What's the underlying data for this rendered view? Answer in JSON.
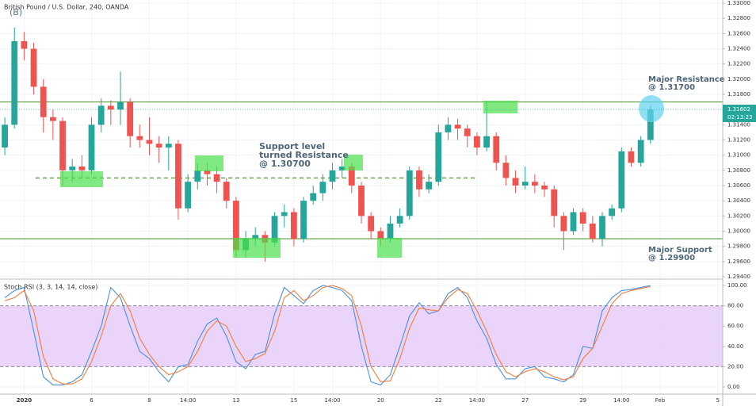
{
  "chart_data": [
    {
      "type": "candlestick",
      "title": "British Pound / U.S. Dollar, 240, OANDA",
      "annotation_b": "(B)",
      "annotations": [
        "Support level",
        "turned Resistance",
        "@ 1.30700",
        "Major Resistance",
        "@ 1.31700",
        "Major Support",
        "@ 1.29900"
      ],
      "categories": [
        null,
        null,
        "2020",
        null,
        null,
        null,
        null,
        null,
        null,
        "6",
        null,
        null,
        null,
        null,
        null,
        "8",
        null,
        null,
        null,
        "14:00",
        null,
        null,
        null,
        null,
        "13",
        null,
        null,
        null,
        null,
        null,
        "15",
        null,
        null,
        null,
        "14:00",
        null,
        null,
        null,
        null,
        "20",
        null,
        null,
        null,
        null,
        null,
        "22",
        null,
        null,
        null,
        "14:00",
        null,
        null,
        null,
        null,
        "27",
        null,
        null,
        null,
        null,
        null,
        "29",
        null,
        null,
        null,
        "14:00",
        null,
        null,
        null,
        "Feb",
        null,
        null,
        null,
        null,
        null,
        "5"
      ],
      "open": [
        1.311,
        1.314,
        1.325,
        1.324,
        1.319,
        1.315,
        1.3145,
        1.308,
        1.3085,
        1.308,
        1.314,
        1.3165,
        1.316,
        1.317,
        1.3125,
        1.312,
        1.3115,
        1.311,
        1.3115,
        1.303,
        1.3065,
        1.308,
        1.3075,
        1.3065,
        1.304,
        1.2975,
        1.299,
        1.2995,
        1.2985,
        1.302,
        1.3025,
        1.299,
        1.304,
        1.305,
        1.3065,
        1.308,
        1.3085,
        1.306,
        1.302,
        1.3,
        1.299,
        1.301,
        1.302,
        1.308,
        1.3055,
        1.3065,
        1.313,
        1.314,
        1.3135,
        1.3125,
        1.311,
        1.3125,
        1.309,
        1.307,
        1.306,
        1.3065,
        1.306,
        1.3055,
        1.302,
        1.3,
        1.3025,
        1.301,
        1.299,
        1.302,
        1.303,
        1.3105,
        1.309,
        1.312,
        null,
        null,
        null,
        null,
        null,
        null,
        null
      ],
      "high": [
        1.315,
        1.3268,
        1.3262,
        1.3248,
        1.32,
        1.316,
        1.315,
        1.3095,
        1.31,
        1.315,
        1.3175,
        1.3172,
        1.321,
        1.3175,
        1.314,
        1.315,
        1.3125,
        1.3125,
        1.312,
        1.3075,
        1.309,
        1.309,
        1.3085,
        1.307,
        1.3045,
        1.3,
        1.3005,
        1.3,
        1.3025,
        1.3035,
        1.303,
        1.3045,
        1.306,
        1.3075,
        1.309,
        1.3095,
        1.309,
        1.3065,
        1.3025,
        1.3005,
        1.302,
        1.303,
        1.3085,
        1.3085,
        1.3075,
        1.314,
        1.315,
        1.3148,
        1.314,
        1.313,
        1.317,
        1.313,
        1.31,
        1.308,
        1.3085,
        1.3075,
        1.3065,
        1.306,
        1.3025,
        1.303,
        1.303,
        1.302,
        1.3025,
        1.3035,
        1.311,
        1.311,
        1.3125,
        1.3165,
        null,
        null,
        null,
        null,
        null,
        null,
        null
      ],
      "low": [
        1.31,
        1.3135,
        1.3225,
        1.318,
        1.313,
        1.312,
        1.306,
        1.3065,
        1.307,
        1.3075,
        1.313,
        1.314,
        1.314,
        1.311,
        1.311,
        1.31,
        1.309,
        1.308,
        1.3015,
        1.3025,
        1.3055,
        1.306,
        1.305,
        1.303,
        1.2965,
        1.2965,
        1.298,
        1.296,
        1.298,
        1.3005,
        1.298,
        1.2985,
        1.3035,
        1.304,
        1.3055,
        1.307,
        1.305,
        1.301,
        1.299,
        1.298,
        1.2985,
        1.3005,
        1.3015,
        1.3045,
        1.305,
        1.306,
        1.312,
        1.312,
        1.311,
        1.31,
        1.3105,
        1.308,
        1.306,
        1.305,
        1.3055,
        1.305,
        1.3045,
        1.3005,
        1.2975,
        1.2995,
        1.3,
        1.2985,
        1.298,
        1.3015,
        1.3025,
        1.3085,
        1.3085,
        1.3115,
        null,
        null,
        null,
        null,
        null,
        null,
        null
      ],
      "close": [
        1.314,
        1.325,
        1.324,
        1.319,
        1.315,
        1.3145,
        1.308,
        1.3085,
        1.308,
        1.314,
        1.3165,
        1.316,
        1.317,
        1.3125,
        1.312,
        1.3115,
        1.311,
        1.3115,
        1.303,
        1.3065,
        1.308,
        1.3075,
        1.3065,
        1.304,
        1.2975,
        1.299,
        1.2995,
        1.2985,
        1.302,
        1.3025,
        1.299,
        1.304,
        1.305,
        1.3065,
        1.308,
        1.3085,
        1.306,
        1.302,
        1.3,
        1.299,
        1.301,
        1.302,
        1.308,
        1.3055,
        1.3065,
        1.313,
        1.314,
        1.3135,
        1.3125,
        1.311,
        1.3125,
        1.309,
        1.307,
        1.306,
        1.3065,
        1.306,
        1.3055,
        1.302,
        1.3,
        1.3025,
        1.301,
        1.299,
        1.302,
        1.303,
        1.3105,
        1.309,
        1.312,
        1.316,
        null,
        null,
        null,
        null,
        null,
        null,
        null
      ],
      "up_color": "#26a69a",
      "down_color": "#ef5350",
      "levels": [
        {
          "value": 1.317,
          "style": "solid"
        },
        {
          "value": 1.299,
          "style": "solid"
        },
        {
          "value": 1.307,
          "style": "dashed"
        }
      ],
      "level_color": "#5c9a3a",
      "last_price": 1.31602,
      "countdown": "02:13:23",
      "ylim": [
        1.294,
        1.33
      ],
      "yticks": [
        {
          "value": 1.33,
          "label": "1.33000"
        },
        {
          "value": 1.328,
          "label": "1.32800"
        },
        {
          "value": 1.326,
          "label": "1.32600"
        },
        {
          "value": 1.324,
          "label": "1.32400"
        },
        {
          "value": 1.322,
          "label": "1.32200"
        },
        {
          "value": 1.32,
          "label": "1.32000"
        },
        {
          "value": 1.318,
          "label": "1.31800"
        },
        {
          "value": 1.316,
          "label": "1.31600"
        },
        {
          "value": 1.314,
          "label": "1.31400"
        },
        {
          "value": 1.312,
          "label": "1.31200"
        },
        {
          "value": 1.31,
          "label": "1.31000"
        },
        {
          "value": 1.308,
          "label": "1.30800"
        },
        {
          "value": 1.306,
          "label": "1.30600"
        },
        {
          "value": 1.304,
          "label": "1.30400"
        },
        {
          "value": 1.302,
          "label": "1.30200"
        },
        {
          "value": 1.3,
          "label": "1.30000"
        },
        {
          "value": 1.298,
          "label": "1.29800"
        },
        {
          "value": 1.296,
          "label": "1.29600"
        },
        {
          "value": 1.294,
          "label": "1.29400"
        }
      ],
      "grid": true
    },
    {
      "type": "line",
      "title": "Stoch RSI (3, 3, 14, 14, close)",
      "series": [
        {
          "name": "K",
          "color": "#4a90e2",
          "values": [
            88,
            95,
            98,
            55,
            10,
            2,
            2,
            5,
            12,
            35,
            60,
            98,
            88,
            60,
            35,
            28,
            15,
            5,
            20,
            22,
            45,
            62,
            68,
            50,
            25,
            18,
            32,
            35,
            72,
            98,
            90,
            82,
            95,
            100,
            98,
            95,
            85,
            40,
            5,
            2,
            12,
            40,
            70,
            83,
            72,
            75,
            92,
            98,
            88,
            65,
            48,
            22,
            8,
            8,
            18,
            20,
            10,
            8,
            5,
            12,
            40,
            38,
            75,
            88,
            95,
            96,
            98,
            100,
            null,
            null,
            null,
            null,
            null,
            null,
            null
          ]
        },
        {
          "name": "D",
          "color": "#f57c3a",
          "values": [
            85,
            88,
            95,
            75,
            30,
            8,
            3,
            3,
            8,
            25,
            50,
            80,
            92,
            75,
            48,
            32,
            20,
            12,
            15,
            20,
            35,
            55,
            65,
            60,
            40,
            25,
            28,
            33,
            55,
            88,
            95,
            85,
            90,
            98,
            100,
            97,
            90,
            60,
            20,
            5,
            6,
            28,
            58,
            78,
            76,
            75,
            88,
            96,
            92,
            75,
            55,
            32,
            15,
            10,
            15,
            18,
            15,
            10,
            7,
            10,
            28,
            38,
            60,
            82,
            92,
            95,
            97,
            99,
            null,
            null,
            null,
            null,
            null,
            null,
            null
          ]
        }
      ],
      "band": [
        20,
        80
      ],
      "band_color": "#e6ccf8",
      "ylim": [
        0,
        100
      ],
      "yticks": [
        {
          "value": 0,
          "label": "0.00"
        },
        {
          "value": 20,
          "label": "20.00"
        },
        {
          "value": 40,
          "label": "40.00"
        },
        {
          "value": 60,
          "label": "60.00"
        },
        {
          "value": 80,
          "label": "80.00"
        },
        {
          "value": 100,
          "label": "100.00"
        }
      ],
      "grid": true
    }
  ]
}
